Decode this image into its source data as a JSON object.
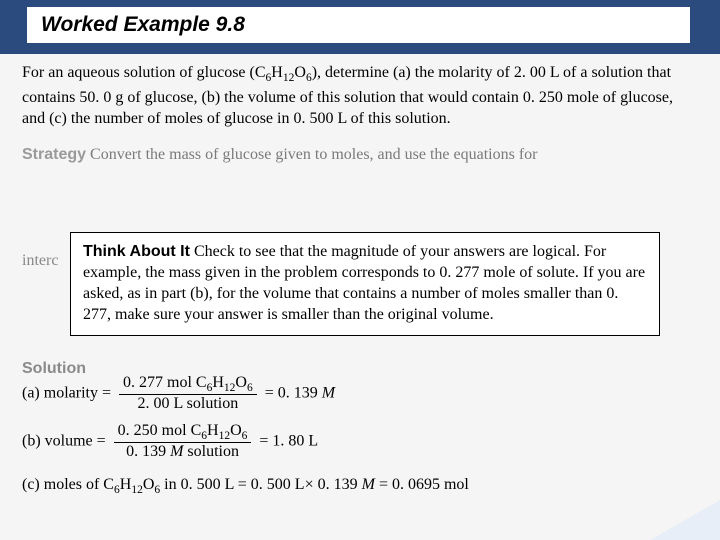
{
  "header": {
    "title": "Worked Example 9.8"
  },
  "problem": {
    "text_html": "For an aqueous solution of glucose (C<span class='sub'>6</span>H<span class='sub'>12</span>O<span class='sub'>6</span>), determine (a) the molarity of 2. 00 L of a solution that contains 50. 0 g of glucose, (b) the volume of this solution that would contain 0. 250 mole of glucose, and (c) the number of moles of glucose in 0. 500 L of this solution."
  },
  "strategy": {
    "label": "Strategy",
    "tail": " Convert the mass of glucose given to moles, and use the equations for",
    "inter": "interc"
  },
  "think": {
    "label": "Think About It",
    "text": " Check to see that the magnitude of your answers are logical. For example, the mass given in the problem corresponds to 0. 277 mole of solute. If you are asked, as in part (b), for the volume that contains a number of moles smaller than 0. 277, make sure your answer is smaller than the original volume."
  },
  "solution": {
    "label": "Solution",
    "a": {
      "lead": "(a)  molarity = ",
      "num": "0. 277 mol C<span class='sub'>6</span>H<span class='sub'>12</span>O<span class='sub'>6</span>",
      "den": "2. 00 L solution",
      "rhs": " = 0. 139 <span class='ital'>M</span>"
    },
    "b": {
      "lead": "(b)  volume = ",
      "num": "0. 250 mol C<span class='sub'>6</span>H<span class='sub'>12</span>O<span class='sub'>6</span>",
      "den": "0. 139 <span class='ital'>M</span> solution",
      "rhs": " = 1. 80 L"
    },
    "c": {
      "text": "(c)  moles of C<span class='sub'>6</span>H<span class='sub'>12</span>O<span class='sub'>6</span> in 0. 500 L = 0. 500 L× 0. 139 <span class='ital'>M</span> = 0. 0695 mol"
    }
  },
  "colors": {
    "header_bg": "#2b4a7d",
    "faded_text": "#888888"
  }
}
